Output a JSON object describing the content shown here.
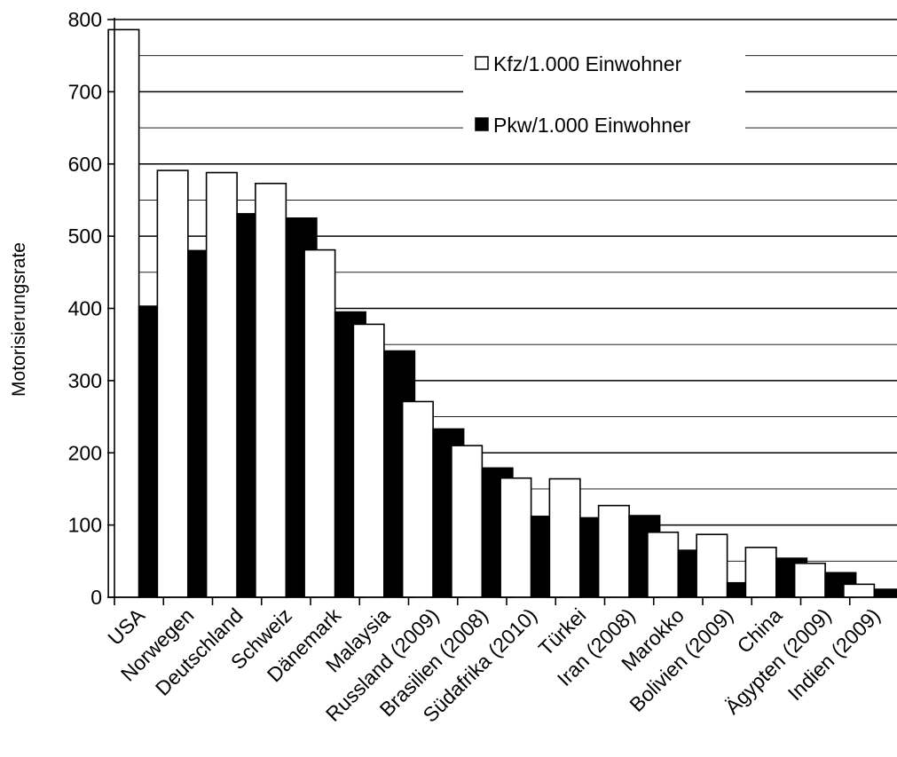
{
  "chart_data": {
    "type": "bar",
    "title": "",
    "xlabel": "",
    "ylabel": "Motorisierungsrate",
    "ylim": [
      0,
      800
    ],
    "yticks": [
      0,
      100,
      200,
      300,
      400,
      500,
      600,
      700,
      800
    ],
    "grid": true,
    "legend_position": "top-right",
    "categories": [
      "USA",
      "Norwegen",
      "Deutschland",
      "Schweiz",
      "Dänemark",
      "Malaysia",
      "Russland (2009)",
      "Brasilien (2008)",
      "Südafrika (2010)",
      "Türkei",
      "Iran (2008)",
      "Marokko",
      "Bolivien (2009)",
      "China",
      "Ägypten (2009)",
      "Indien (2009)"
    ],
    "series": [
      {
        "name": "Kfz/1.000 Einwohner",
        "color": "#ffffff",
        "values": [
          786,
          591,
          588,
          573,
          481,
          378,
          271,
          210,
          165,
          164,
          127,
          90,
          87,
          69,
          47,
          18
        ]
      },
      {
        "name": "Pkw/1.000 Einwohner",
        "color": "#000000",
        "values": [
          403,
          480,
          531,
          525,
          395,
          341,
          233,
          179,
          112,
          110,
          113,
          65,
          20,
          54,
          34,
          11
        ]
      }
    ]
  }
}
